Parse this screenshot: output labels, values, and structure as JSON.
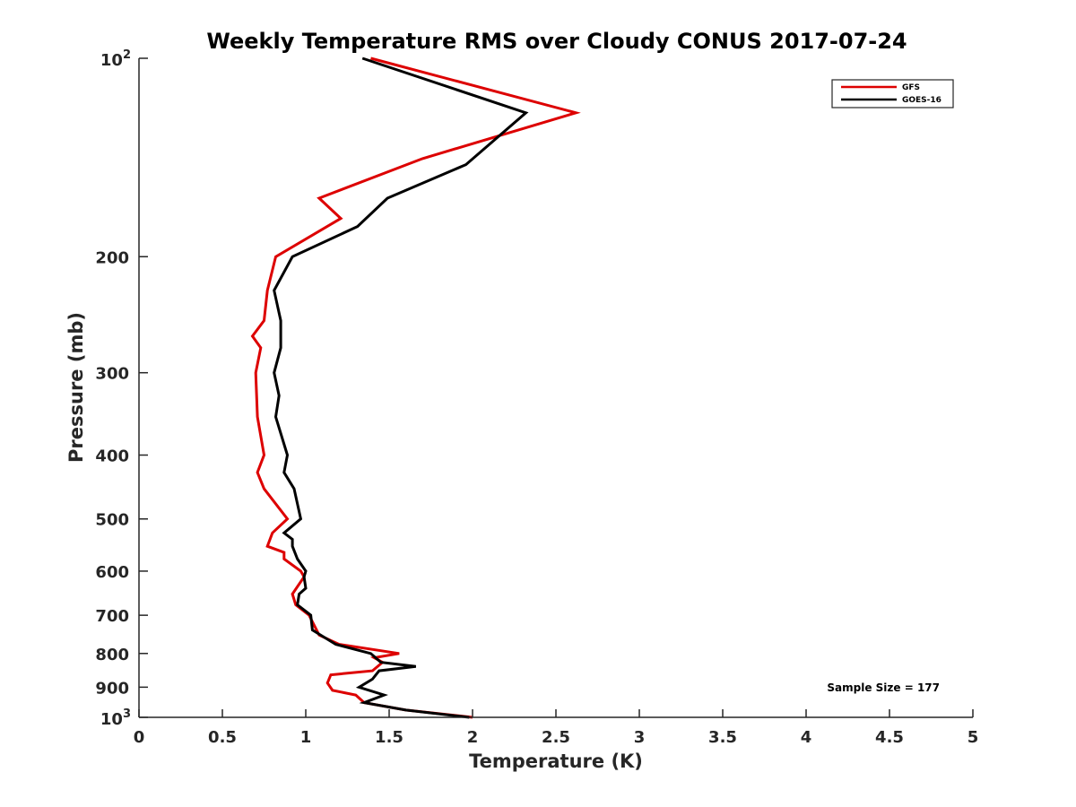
{
  "chart_data": {
    "type": "line",
    "title": "Weekly Temperature RMS over Cloudy CONUS 2017-07-24",
    "xlabel": "Temperature (K)",
    "ylabel": "Pressure (mb)",
    "xlim": [
      0,
      5
    ],
    "ylim": [
      100,
      1000
    ],
    "y_scale": "log",
    "y_reversed": true,
    "x_ticks": [
      "0",
      "0.5",
      "1",
      "1.5",
      "2",
      "2.5",
      "3",
      "3.5",
      "4",
      "4.5",
      "5"
    ],
    "x_tick_values": [
      0,
      0.5,
      1,
      1.5,
      2,
      2.5,
      3,
      3.5,
      4,
      4.5,
      5
    ],
    "y_ticks": [
      {
        "value": 100,
        "base": "10",
        "exp": "2"
      },
      {
        "value": 200,
        "label": "200"
      },
      {
        "value": 300,
        "label": "300"
      },
      {
        "value": 400,
        "label": "400"
      },
      {
        "value": 500,
        "label": "500"
      },
      {
        "value": 600,
        "label": "600"
      },
      {
        "value": 700,
        "label": "700"
      },
      {
        "value": 800,
        "label": "800"
      },
      {
        "value": 900,
        "label": "900"
      },
      {
        "value": 1000,
        "base": "10",
        "exp": "3"
      }
    ],
    "legend_position": "top-right",
    "annotation": "Sample Size = 177",
    "series": [
      {
        "name": "GFS",
        "color": "#dd0000",
        "points": [
          [
            1.39,
            100
          ],
          [
            2.62,
            121
          ],
          [
            1.7,
            142
          ],
          [
            1.08,
            163
          ],
          [
            1.21,
            175
          ],
          [
            0.82,
            200
          ],
          [
            0.77,
            225
          ],
          [
            0.75,
            250
          ],
          [
            0.68,
            264
          ],
          [
            0.73,
            275
          ],
          [
            0.7,
            300
          ],
          [
            0.71,
            350
          ],
          [
            0.75,
            400
          ],
          [
            0.71,
            425
          ],
          [
            0.75,
            450
          ],
          [
            0.89,
            500
          ],
          [
            0.8,
            525
          ],
          [
            0.77,
            550
          ],
          [
            0.87,
            562
          ],
          [
            0.87,
            575
          ],
          [
            0.97,
            600
          ],
          [
            0.99,
            612
          ],
          [
            0.92,
            650
          ],
          [
            0.94,
            675
          ],
          [
            1.02,
            700
          ],
          [
            1.08,
            750
          ],
          [
            1.2,
            775
          ],
          [
            1.56,
            800
          ],
          [
            1.41,
            812
          ],
          [
            1.46,
            825
          ],
          [
            1.4,
            850
          ],
          [
            1.15,
            862
          ],
          [
            1.13,
            887
          ],
          [
            1.16,
            910
          ],
          [
            1.3,
            925
          ],
          [
            1.35,
            950
          ],
          [
            1.6,
            975
          ],
          [
            2.0,
            1000
          ]
        ]
      },
      {
        "name": "GOES-16",
        "color": "#000000",
        "points": [
          [
            1.34,
            100
          ],
          [
            2.32,
            121
          ],
          [
            1.96,
            145
          ],
          [
            1.49,
            163
          ],
          [
            1.31,
            180
          ],
          [
            0.92,
            200
          ],
          [
            0.81,
            225
          ],
          [
            0.85,
            250
          ],
          [
            0.85,
            275
          ],
          [
            0.81,
            300
          ],
          [
            0.84,
            325
          ],
          [
            0.82,
            350
          ],
          [
            0.89,
            400
          ],
          [
            0.87,
            425
          ],
          [
            0.93,
            450
          ],
          [
            0.97,
            500
          ],
          [
            0.87,
            525
          ],
          [
            0.92,
            537
          ],
          [
            0.92,
            550
          ],
          [
            0.95,
            575
          ],
          [
            1.0,
            600
          ],
          [
            0.99,
            612
          ],
          [
            1.0,
            637
          ],
          [
            0.96,
            650
          ],
          [
            0.95,
            675
          ],
          [
            1.03,
            700
          ],
          [
            1.04,
            737
          ],
          [
            1.18,
            775
          ],
          [
            1.39,
            800
          ],
          [
            1.45,
            825
          ],
          [
            1.66,
            837
          ],
          [
            1.44,
            850
          ],
          [
            1.4,
            875
          ],
          [
            1.32,
            900
          ],
          [
            1.47,
            925
          ],
          [
            1.35,
            950
          ],
          [
            1.6,
            975
          ],
          [
            1.98,
            1000
          ]
        ]
      }
    ]
  }
}
